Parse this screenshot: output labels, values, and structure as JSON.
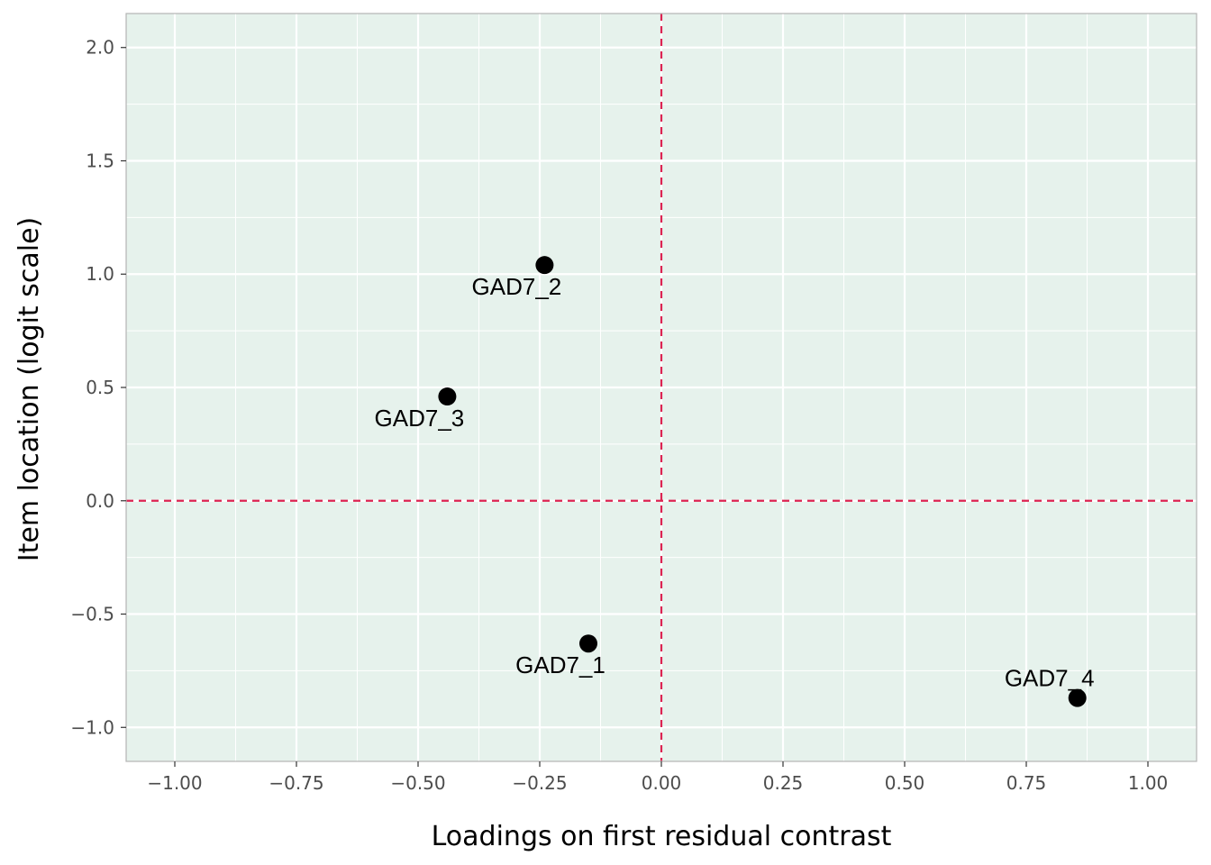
{
  "chart_data": {
    "type": "scatter",
    "xlabel": "Loadings on first residual contrast",
    "ylabel": "Item location (logit scale)",
    "xlim": [
      -1.1,
      1.1
    ],
    "ylim": [
      -1.15,
      2.15
    ],
    "x_ticks": [
      -1.0,
      -0.75,
      -0.5,
      -0.25,
      0.0,
      0.25,
      0.5,
      0.75,
      1.0
    ],
    "x_tick_labels": [
      "−1.00",
      "−0.75",
      "−0.50",
      "−0.25",
      "0.00",
      "0.25",
      "0.50",
      "0.75",
      "1.00"
    ],
    "y_ticks": [
      -1.0,
      -0.5,
      0.0,
      0.5,
      1.0,
      1.5,
      2.0
    ],
    "y_tick_labels": [
      "−1.0",
      "−0.5",
      "0.0",
      "0.5",
      "1.0",
      "1.5",
      "2.0"
    ],
    "grid": true,
    "reference_lines": {
      "x": 0,
      "y": 0,
      "style": "dashed",
      "color": "#dc2452"
    },
    "points": [
      {
        "label": "GAD7_1",
        "x": -0.15,
        "y": -0.63,
        "label_position": "below"
      },
      {
        "label": "GAD7_2",
        "x": -0.24,
        "y": 1.04,
        "label_position": "below"
      },
      {
        "label": "GAD7_3",
        "x": -0.44,
        "y": 0.46,
        "label_position": "below"
      },
      {
        "label": "GAD7_4",
        "x": 0.855,
        "y": -0.87,
        "label_position": "above"
      }
    ],
    "colors": {
      "panel_background": "#e6f2ec",
      "panel_border": "#b3b3b3",
      "grid": "#ffffff",
      "point": "#000000"
    }
  }
}
